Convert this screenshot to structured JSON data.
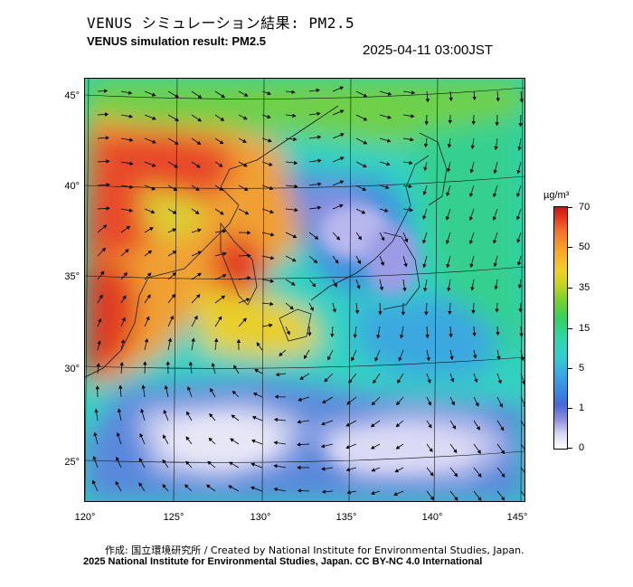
{
  "header": {
    "title_ja": "VENUS シミュレーション結果: PM2.5",
    "title_en": "VENUS simulation result: PM2.5",
    "timestamp": "2025-04-11 03:00JST"
  },
  "axes": {
    "lat_labels": [
      "45°",
      "40°",
      "35°",
      "30°",
      "25°"
    ],
    "lon_labels": [
      "120°",
      "125°",
      "130°",
      "135°",
      "140°",
      "145°"
    ]
  },
  "legend": {
    "unit": "µg/m³",
    "ticks": [
      "70",
      "50",
      "35",
      "15",
      "5",
      "1",
      "0"
    ]
  },
  "footer": {
    "credit_line": "作成: 国立環境研究所 / Created by National Institute for Environmental Studies, Japan.",
    "license_line": "2025 National Institute for Environmental Studies, Japan. CC BY-NC 4.0 International"
  }
}
